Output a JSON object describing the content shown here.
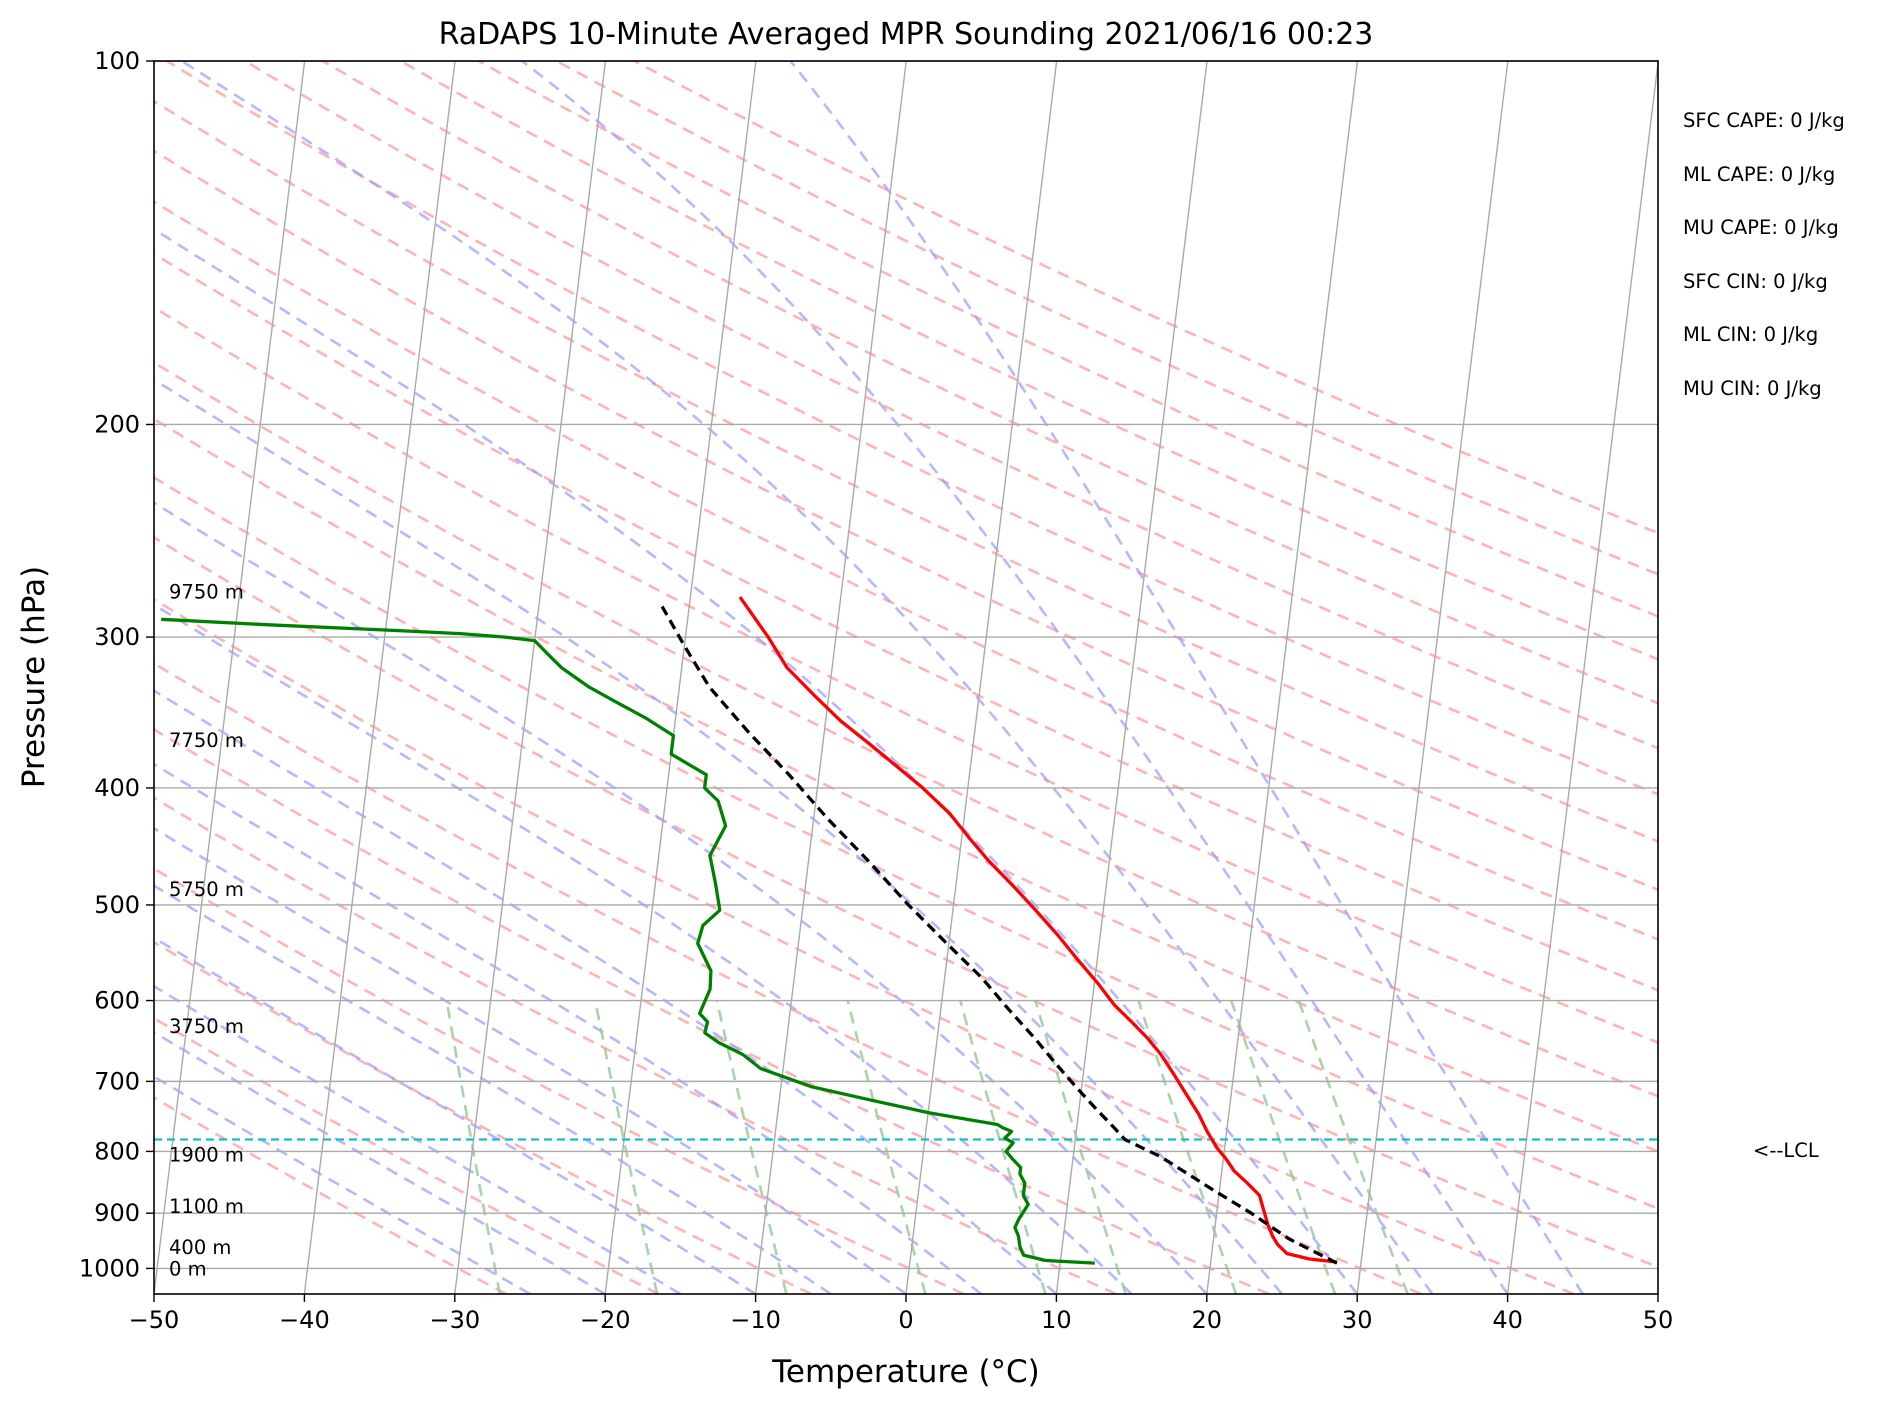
{
  "chart_data": {
    "type": "line",
    "title": "RaDAPS 10-Minute Averaged MPR Sounding 2021/06/16 00:23",
    "xlabel": "Temperature (°C)",
    "ylabel": "Pressure (hPa)",
    "xlim": [
      -50,
      50
    ],
    "ylim": [
      1050,
      100
    ],
    "y_scale": "log",
    "skew": "skew-T",
    "grid": true,
    "x_ticks": [
      "−50",
      "−40",
      "−30",
      "−20",
      "−10",
      "0",
      "10",
      "20",
      "30",
      "40",
      "50"
    ],
    "y_ticks": [
      "100",
      "200",
      "300",
      "400",
      "500",
      "600",
      "700",
      "800",
      "900",
      "1000"
    ],
    "annotations": {
      "cape_cin": [
        "SFC CAPE: 0 J/kg",
        "ML CAPE: 0 J/kg",
        "MU CAPE: 0 J/kg",
        "SFC CIN: 0 J/kg",
        "ML CIN: 0 J/kg",
        "MU CIN: 0 J/kg"
      ],
      "lcl_label": "<--LCL",
      "lcl_pressure": 782,
      "height_labels": [
        {
          "text": "9750 m",
          "p": 275
        },
        {
          "text": "7750 m",
          "p": 365
        },
        {
          "text": "5750 m",
          "p": 485
        },
        {
          "text": "3750 m",
          "p": 630
        },
        {
          "text": "1900 m",
          "p": 805
        },
        {
          "text": "1100 m",
          "p": 888
        },
        {
          "text": "400 m",
          "p": 960
        },
        {
          "text": "0 m",
          "p": 1000
        }
      ]
    },
    "colors": {
      "temperature": "#ff0000",
      "dewpoint": "#008000",
      "parcel": "#000000",
      "lcl_line": "#17becf",
      "dry_adiabat": "#ff9999",
      "moist_adiabat": "#9999ff",
      "mixing_ratio": "#99cc99",
      "isotherm": "#aaaaaa"
    },
    "series": [
      {
        "name": "Temperature",
        "x": [
          28.4,
          26.5,
          25.0,
          24.3,
          23.9,
          23.5,
          23.1,
          22.7,
          21.8,
          20.8,
          20.2,
          19.5,
          18.7,
          18.0,
          17.0,
          16.0,
          15.0,
          14.0,
          12.8,
          11.5,
          10.2,
          8.7,
          7.2,
          5.5,
          3.8,
          2.0,
          0.5,
          -1.0,
          -3.0,
          -5.0,
          -7.0,
          -9.0,
          -11.0,
          -13.0,
          -14.5,
          -16.7
        ],
        "y": [
          988,
          982,
          972,
          955,
          940,
          920,
          895,
          870,
          850,
          830,
          812,
          795,
          770,
          745,
          717,
          690,
          665,
          645,
          625,
          605,
          580,
          555,
          530,
          505,
          482,
          460,
          440,
          420,
          400,
          383,
          367,
          352,
          335,
          318,
          300,
          278
        ]
      },
      {
        "name": "Dewpoint",
        "x": [
          12.3,
          9.0,
          7.5,
          7.2,
          7.0,
          6.7,
          6.9,
          7.2,
          7.4,
          7.0,
          7.0,
          6.6,
          6.6,
          6.0,
          5.5,
          5.9,
          5.3,
          5.7,
          5.1,
          4.7,
          2.5,
          0.0,
          -4.0,
          -8.0,
          -11.5,
          -12.8,
          -14.5,
          -15.5,
          -15.4,
          -16.0,
          -15.5,
          -15.6,
          -16.7,
          -16.5,
          -15.5,
          -16.0,
          -16.6,
          -15.8,
          -16.5,
          -17.5,
          -17.5,
          -20.0,
          -20.0,
          -22.0,
          -24.0,
          -26.0,
          -28.0,
          -29.0,
          -30.0,
          -32.0,
          -35.0,
          -40.0,
          -48.0,
          -55.0
        ],
        "y": [
          990,
          985,
          975,
          960,
          940,
          925,
          910,
          895,
          885,
          870,
          850,
          835,
          825,
          812,
          800,
          787,
          780,
          770,
          765,
          760,
          752,
          743,
          725,
          707,
          683,
          665,
          650,
          638,
          625,
          615,
          587,
          567,
          538,
          520,
          505,
          480,
          455,
          430,
          410,
          400,
          390,
          375,
          362,
          350,
          340,
          330,
          318,
          310,
          302,
          300,
          298,
          296,
          293,
          290
        ]
      },
      {
        "name": "Parcel",
        "x": [
          28.4,
          25.0,
          22.3,
          19.5,
          16.9,
          15.8,
          13.3,
          12.5,
          11.0,
          9.5,
          8.0,
          6.5,
          4.5,
          2.5,
          0.0,
          -3.0,
          -6.0,
          -9.0,
          -12.0,
          -15.0,
          -18.0,
          -20.0,
          -21.8
        ],
        "y": [
          990,
          945,
          900,
          860,
          823,
          808,
          782,
          765,
          735,
          705,
          675,
          645,
          610,
          575,
          540,
          500,
          460,
          425,
          390,
          360,
          330,
          305,
          283
        ]
      }
    ]
  }
}
